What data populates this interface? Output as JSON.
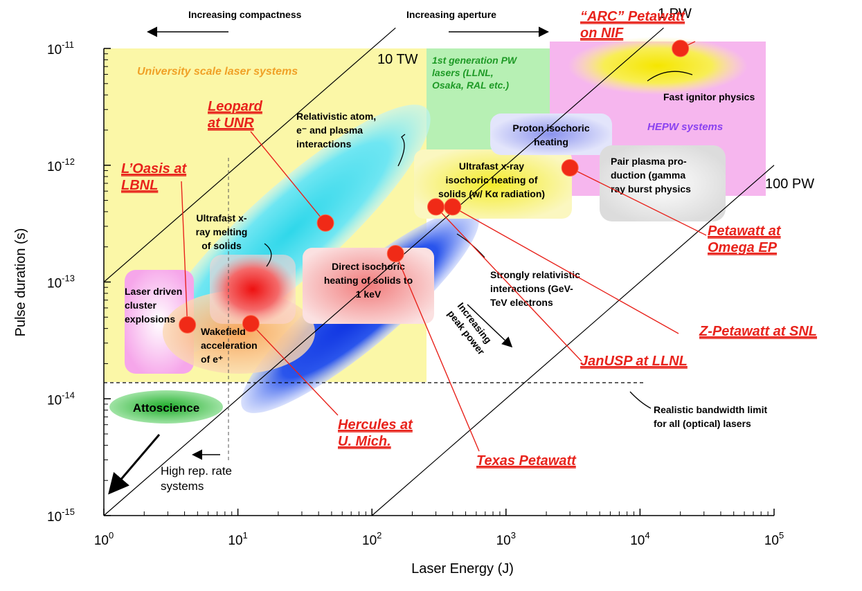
{
  "chart_data": {
    "type": "scatter",
    "xscale": "log",
    "yscale": "log",
    "xlim": [
      1,
      100000
    ],
    "ylim": [
      1e-15,
      1e-11
    ],
    "grid": false,
    "xlabel": "Laser Energy (J)",
    "ylabel": "Pulse duration (s)",
    "x_ticks": [
      {
        "base": "10",
        "exp": "0",
        "value": 1
      },
      {
        "base": "10",
        "exp": "1",
        "value": 10
      },
      {
        "base": "10",
        "exp": "2",
        "value": 100
      },
      {
        "base": "10",
        "exp": "3",
        "value": 1000
      },
      {
        "base": "10",
        "exp": "4",
        "value": 10000
      },
      {
        "base": "10",
        "exp": "5",
        "value": 100000
      }
    ],
    "y_ticks": [
      {
        "base": "10",
        "exp": "-11",
        "value": 1e-11
      },
      {
        "base": "10",
        "exp": "-12",
        "value": 1e-12
      },
      {
        "base": "10",
        "exp": "-13",
        "value": 1e-13
      },
      {
        "base": "10",
        "exp": "-14",
        "value": 1e-14
      },
      {
        "base": "10",
        "exp": "-15",
        "value": 1e-15
      }
    ],
    "power_lines": [
      {
        "label": "10 TW",
        "power_w": 10000000000000.0
      },
      {
        "label": "1 PW",
        "power_w": 1000000000000000.0
      },
      {
        "label": "100 PW",
        "power_w": 1e+17
      }
    ],
    "points": [
      {
        "label_lines": [
          "“ARC” Petawatt",
          "on NIF"
        ],
        "energy_j": 20000,
        "duration_s": 1e-11
      },
      {
        "label_lines": [
          "Leopard",
          "at UNR"
        ],
        "energy_j": 45,
        "duration_s": 3.2e-13
      },
      {
        "label_lines": [
          "L’Oasis at",
          "LBNL"
        ],
        "energy_j": 4.2,
        "duration_s": 4.3e-14
      },
      {
        "label_lines": [
          "Petawatt at",
          "Omega EP"
        ],
        "energy_j": 3000,
        "duration_s": 9.5e-13
      },
      {
        "label_lines": [
          "Z-Petawatt at SNL"
        ],
        "energy_j": 400,
        "duration_s": 4.4e-13
      },
      {
        "label_lines": [
          "JanUSP at LLNL"
        ],
        "energy_j": 300,
        "duration_s": 4.4e-13
      },
      {
        "label_lines": [
          "Hercules at",
          "U. Mich."
        ],
        "energy_j": 12.5,
        "duration_s": 4.4e-14
      },
      {
        "label_lines": [
          "Texas Petawatt"
        ],
        "energy_j": 150,
        "duration_s": 1.75e-13
      }
    ],
    "annotations": {
      "compactness": "Increasing compactness",
      "aperture": "Increasing aperture",
      "university": "University scale laser systems",
      "first_gen": [
        "1st generation PW",
        "lasers (LLNL,",
        "Osaka, RAL etc.)"
      ],
      "fast_ignitor": "Fast ignitor physics",
      "hepw": "HEPW systems",
      "proton": [
        "Proton isochoric",
        "heating"
      ],
      "relativistic_atom": [
        "Relativistic atom,",
        "e⁻ and plasma",
        "interactions"
      ],
      "ultrafast_xray_heating": [
        "Ultrafast x-ray",
        "isochoric heating of",
        "solids (w/ Kα radiation)"
      ],
      "pair_plasma": [
        "Pair plasma pro-",
        "duction (gamma",
        "ray burst physics"
      ],
      "xray_melting": [
        "Ultrafast x-",
        "ray melting",
        "of solids"
      ],
      "direct_isochoric": [
        "Direct isochoric",
        "heating of solids to",
        "1 keV"
      ],
      "strongly_relativistic": [
        "Strongly relativistic",
        "interactions (GeV-",
        "TeV electrons"
      ],
      "cluster": [
        "Laser driven",
        "cluster",
        "explosions"
      ],
      "wakefield": [
        "Wakefield",
        "acceleration",
        "of e⁺"
      ],
      "peak_power": [
        "Increasing",
        "peak power"
      ],
      "attoscience": "Attoscience",
      "bandwidth": [
        "Realistic bandwidth limit",
        "for all (optical) lasers"
      ],
      "high_rep": [
        "High rep. rate",
        "systems"
      ]
    },
    "colors": {
      "red": "#e8231c",
      "university_bg": "#fbf7a7",
      "first_gen_bg": "#b7f0b4",
      "hepw_bg": "#f6b6ee",
      "cyan": "#6fe6f2",
      "blue": "#1c3fe0",
      "green_text": "#1e9a26",
      "orange_text": "#f0a127",
      "purple_text": "#8a42f0"
    }
  }
}
